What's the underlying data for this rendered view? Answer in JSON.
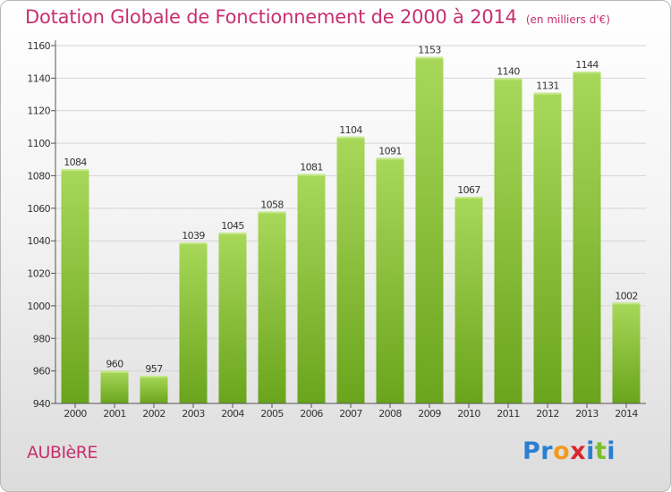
{
  "header": {
    "title": "Dotation Globale de Fonctionnement de 2000 à 2014",
    "subtitle": "(en milliers d'€)"
  },
  "commune": "AUBIèRE",
  "logo": {
    "text": "Proxiti",
    "colors": [
      "#2a7fd0",
      "#2a7fd0",
      "#f39a1e",
      "#d9262f",
      "#2a7fd0",
      "#7bbf2a",
      "#2a7fd0"
    ]
  },
  "colors": {
    "bar_light": "#a8d85a",
    "bar_dark": "#6aa41c",
    "accent": "#c8306e",
    "grid": "#d4d4d4"
  },
  "chart_data": {
    "type": "bar",
    "categories": [
      "2000",
      "2001",
      "2002",
      "2003",
      "2004",
      "2005",
      "2006",
      "2007",
      "2008",
      "2009",
      "2010",
      "2011",
      "2012",
      "2013",
      "2014"
    ],
    "values": [
      1084,
      960,
      957,
      1039,
      1045,
      1058,
      1081,
      1104,
      1091,
      1153,
      1067,
      1140,
      1131,
      1144,
      1002
    ],
    "ylim": [
      940,
      1160
    ],
    "yticks": [
      940,
      960,
      980,
      1000,
      1020,
      1040,
      1060,
      1080,
      1100,
      1120,
      1140,
      1160
    ],
    "grid": true,
    "data_labels": true
  }
}
